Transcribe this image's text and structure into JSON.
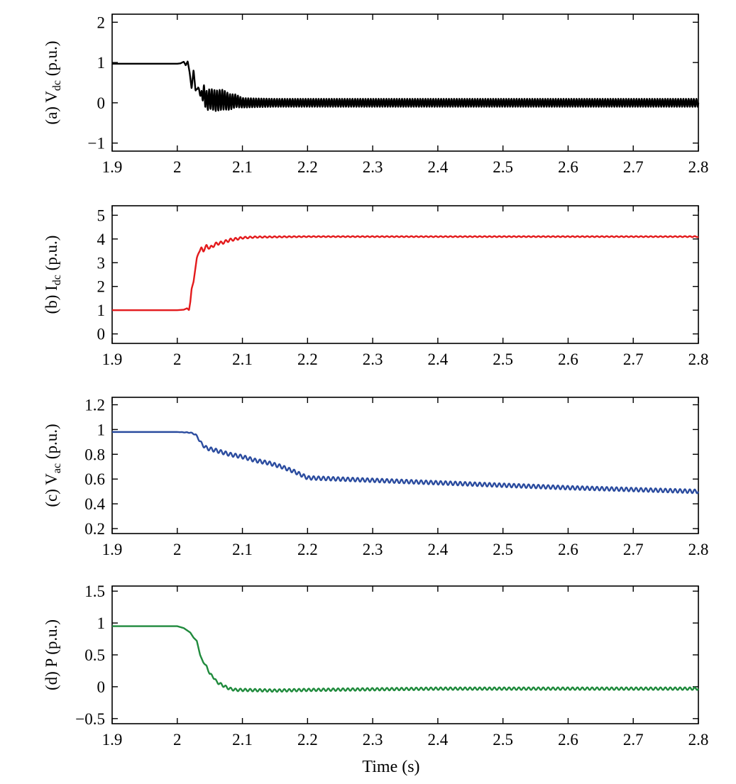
{
  "xlabel": "Time (s)",
  "chart_data": [
    {
      "type": "line",
      "ylabel_prefix": "(a) V",
      "ylabel_sub": "dc",
      "ylabel_suffix": " (p.u.)",
      "xlim": [
        1.9,
        2.8
      ],
      "ylim": [
        -1.2,
        2.2
      ],
      "xticks": [
        1.9,
        2,
        2.1,
        2.2,
        2.3,
        2.4,
        2.5,
        2.6,
        2.7,
        2.8
      ],
      "xtick_labels": [
        "1.9",
        "2",
        "2.1",
        "2.2",
        "2.3",
        "2.4",
        "2.5",
        "2.6",
        "2.7",
        "2.8"
      ],
      "yticks": [
        -1,
        0,
        1,
        2
      ],
      "ytick_labels": [
        "−1",
        "0",
        "1",
        "2"
      ],
      "color": "#000000",
      "series": [
        {
          "x": [
            1.9,
            2.0,
            2.005,
            2.01,
            2.013,
            2.016,
            2.019,
            2.022,
            2.025,
            2.028,
            2.032,
            2.036,
            2.04,
            2.045,
            2.05,
            2.06,
            2.07,
            2.08,
            2.09,
            2.1,
            2.12,
            2.15,
            2.2,
            2.4,
            2.6,
            2.8
          ],
          "y": [
            0.97,
            0.97,
            0.98,
            1.02,
            0.93,
            1.03,
            0.75,
            0.35,
            0.82,
            0.3,
            0.38,
            0.18,
            0.25,
            0.05,
            0.1,
            0.05,
            0.08,
            0.02,
            0.05,
            0.0,
            0.0,
            0.0,
            0.0,
            0.0,
            0.0,
            0.0
          ],
          "osc_amp": [
            0,
            0,
            0,
            0,
            0,
            0,
            0,
            0,
            0,
            0,
            0.02,
            0.05,
            0.22,
            0.25,
            0.25,
            0.26,
            0.25,
            0.2,
            0.16,
            0.12,
            0.11,
            0.1,
            0.1,
            0.1,
            0.1,
            0.1
          ],
          "osc_period": 0.004
        }
      ]
    },
    {
      "type": "line",
      "ylabel_prefix": "(b) I",
      "ylabel_sub": "dc",
      "ylabel_suffix": " (p.u.)",
      "xlim": [
        1.9,
        2.8
      ],
      "ylim": [
        -0.4,
        5.4
      ],
      "xticks": [
        1.9,
        2,
        2.1,
        2.2,
        2.3,
        2.4,
        2.5,
        2.6,
        2.7,
        2.8
      ],
      "xtick_labels": [
        "1.9",
        "2",
        "2.1",
        "2.2",
        "2.3",
        "2.4",
        "2.5",
        "2.6",
        "2.7",
        "2.8"
      ],
      "yticks": [
        0,
        1,
        2,
        3,
        4,
        5
      ],
      "ytick_labels": [
        "0",
        "1",
        "2",
        "3",
        "4",
        "5"
      ],
      "color": "#e31a1c",
      "series": [
        {
          "x": [
            1.9,
            2.0,
            2.01,
            2.015,
            2.018,
            2.02,
            2.022,
            2.025,
            2.028,
            2.03,
            2.033,
            2.037,
            2.04,
            2.045,
            2.05,
            2.06,
            2.07,
            2.08,
            2.09,
            2.1,
            2.12,
            2.2,
            2.4,
            2.6,
            2.8
          ],
          "y": [
            1.0,
            1.0,
            1.02,
            1.08,
            1.0,
            1.35,
            1.9,
            2.2,
            2.8,
            3.2,
            3.45,
            3.6,
            3.52,
            3.7,
            3.62,
            3.8,
            3.85,
            3.95,
            4.0,
            4.05,
            4.08,
            4.1,
            4.1,
            4.1,
            4.1
          ],
          "osc_amp": [
            0,
            0,
            0,
            0,
            0,
            0,
            0,
            0,
            0,
            0,
            0.03,
            0.05,
            0.06,
            0.06,
            0.06,
            0.06,
            0.06,
            0.06,
            0.05,
            0.04,
            0.03,
            0.02,
            0.02,
            0.02,
            0.02
          ],
          "osc_period": 0.0075
        }
      ]
    },
    {
      "type": "line",
      "ylabel_prefix": "(c) V",
      "ylabel_sub": "ac",
      "ylabel_suffix": " (p.u.)",
      "xlim": [
        1.9,
        2.8
      ],
      "ylim": [
        0.16,
        1.26
      ],
      "xticks": [
        1.9,
        2,
        2.1,
        2.2,
        2.3,
        2.4,
        2.5,
        2.6,
        2.7,
        2.8
      ],
      "xtick_labels": [
        "1.9",
        "2",
        "2.1",
        "2.2",
        "2.3",
        "2.4",
        "2.5",
        "2.6",
        "2.7",
        "2.8"
      ],
      "yticks": [
        0.2,
        0.4,
        0.6,
        0.8,
        1.0,
        1.2
      ],
      "ytick_labels": [
        "0.2",
        "0.4",
        "0.6",
        "0.8",
        "1",
        "1.2"
      ],
      "color": "#2b4c9f",
      "series": [
        {
          "x": [
            1.9,
            2.0,
            2.02,
            2.028,
            2.032,
            2.038,
            2.045,
            2.06,
            2.08,
            2.1,
            2.12,
            2.14,
            2.16,
            2.18,
            2.2,
            2.25,
            2.3,
            2.4,
            2.5,
            2.6,
            2.7,
            2.8
          ],
          "y": [
            0.98,
            0.98,
            0.975,
            0.96,
            0.93,
            0.88,
            0.85,
            0.83,
            0.8,
            0.78,
            0.75,
            0.73,
            0.7,
            0.66,
            0.61,
            0.6,
            0.59,
            0.57,
            0.55,
            0.53,
            0.515,
            0.5
          ],
          "osc_amp": [
            0,
            0,
            0.003,
            0.005,
            0.008,
            0.012,
            0.015,
            0.015,
            0.015,
            0.015,
            0.015,
            0.015,
            0.015,
            0.015,
            0.015,
            0.015,
            0.015,
            0.015,
            0.015,
            0.015,
            0.015,
            0.015
          ],
          "osc_period": 0.0075
        }
      ]
    },
    {
      "type": "line",
      "ylabel_prefix": "(d) P (p.u.)",
      "ylabel_sub": "",
      "ylabel_suffix": "",
      "xlim": [
        1.9,
        2.8
      ],
      "ylim": [
        -0.58,
        1.58
      ],
      "xticks": [
        1.9,
        2,
        2.1,
        2.2,
        2.3,
        2.4,
        2.5,
        2.6,
        2.7,
        2.8
      ],
      "xtick_labels": [
        "1.9",
        "2",
        "2.1",
        "2.2",
        "2.3",
        "2.4",
        "2.5",
        "2.6",
        "2.7",
        "2.8"
      ],
      "yticks": [
        -0.5,
        0,
        0.5,
        1,
        1.5
      ],
      "ytick_labels": [
        "−0.5",
        "0",
        "0.5",
        "1",
        "1.5"
      ],
      "color": "#1f8a3c",
      "series": [
        {
          "x": [
            1.9,
            2.0,
            2.01,
            2.02,
            2.025,
            2.03,
            2.035,
            2.04,
            2.045,
            2.05,
            2.055,
            2.06,
            2.07,
            2.08,
            2.09,
            2.1,
            2.15,
            2.2,
            2.4,
            2.6,
            2.8
          ],
          "y": [
            0.95,
            0.95,
            0.92,
            0.85,
            0.77,
            0.72,
            0.5,
            0.38,
            0.32,
            0.2,
            0.16,
            0.08,
            0.02,
            -0.03,
            -0.05,
            -0.05,
            -0.06,
            -0.05,
            -0.03,
            -0.03,
            -0.03
          ],
          "osc_amp": [
            0,
            0,
            0,
            0,
            0,
            0,
            0,
            0,
            0.01,
            0.015,
            0.02,
            0.02,
            0.02,
            0.02,
            0.02,
            0.02,
            0.02,
            0.02,
            0.02,
            0.02,
            0.02
          ],
          "osc_period": 0.0075
        }
      ]
    }
  ]
}
